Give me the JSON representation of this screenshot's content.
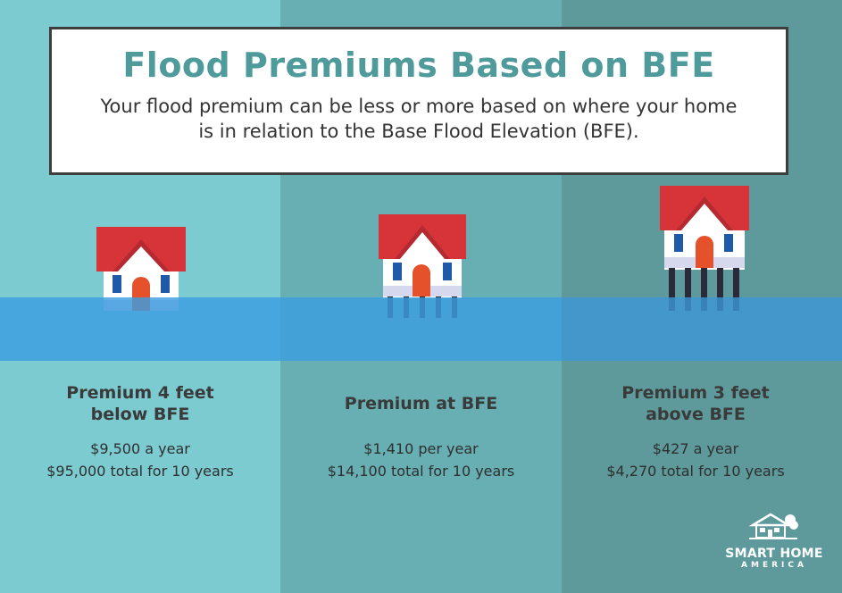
{
  "header": {
    "title": "Flood Premiums Based on BFE",
    "subtitle": "Your flood premium can be less or more based on where your home is in relation to the Base Flood Elevation (BFE)."
  },
  "scenarios": [
    {
      "heading_line1": "Premium 4 feet",
      "heading_line2": "below BFE",
      "annual": "$9,500 a year",
      "total": "$95,000 total for 10 years",
      "house_position": "below water"
    },
    {
      "heading_line1": "Premium at BFE",
      "heading_line2": "",
      "annual": "$1,410 per year",
      "total": "$14,100 total for 10 years",
      "house_position": "at water level on piers"
    },
    {
      "heading_line1": "Premium 3 feet",
      "heading_line2": "above BFE",
      "annual": "$427 a year",
      "total": "$4,270 total for 10 years",
      "house_position": "above water on tall piers"
    }
  ],
  "logo": {
    "name": "SMART HOME",
    "sub": "AMERICA",
    "icon": "house-logo-icon"
  },
  "colors": {
    "panel_left": "#7ccbd0",
    "panel_middle": "#67afb2",
    "panel_right": "#5e9a9b",
    "title_color": "#4f9a9b",
    "water": "#3d9ee0",
    "roof": "#d7343a",
    "door": "#e4512a",
    "window": "#1f5aa8"
  }
}
